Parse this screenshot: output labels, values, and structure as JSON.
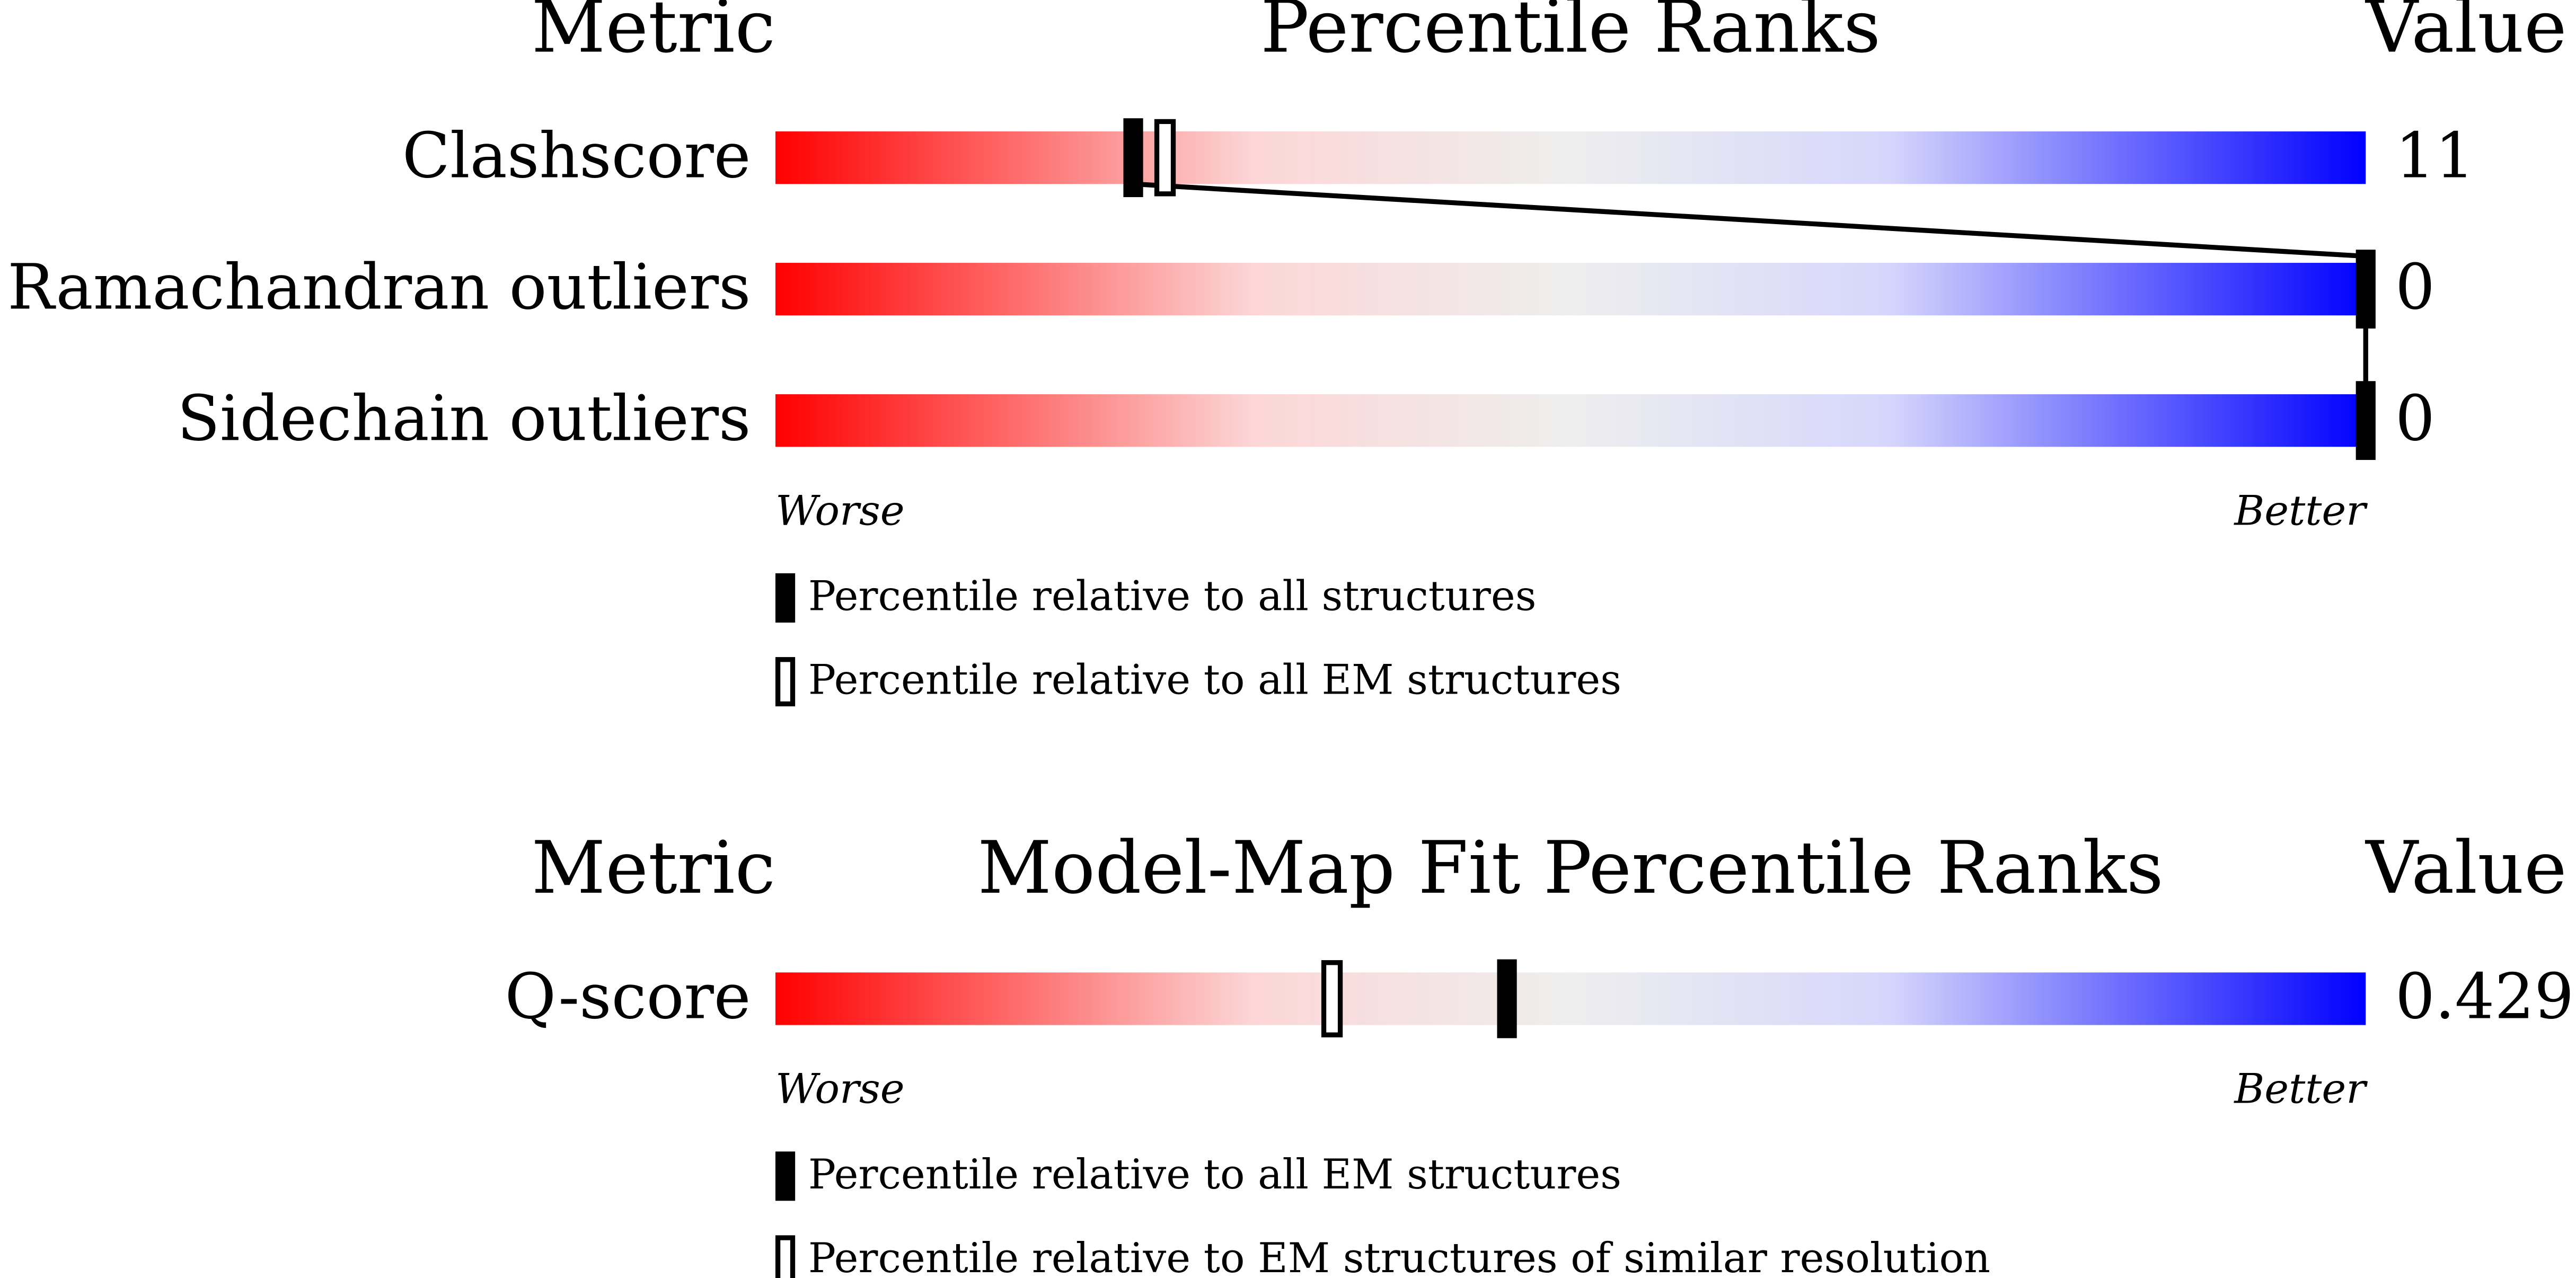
{
  "chart_data": [
    {
      "type": "percentile-slider",
      "metric_header": "Metric",
      "title": "Percentile Ranks",
      "value_header": "Value",
      "xlim": [
        0,
        100
      ],
      "worse_label": "Worse",
      "better_label": "Better",
      "legend": [
        "Percentile relative to all structures",
        "Percentile relative to all EM structures"
      ],
      "metrics": [
        {
          "name": "Clashscore",
          "value": 11,
          "percentiles": [
            22.5,
            24.5
          ]
        },
        {
          "name": "Ramachandran outliers",
          "value": 0,
          "percentiles": [
            100
          ]
        },
        {
          "name": "Sidechain outliers",
          "value": 0,
          "percentiles": [
            100
          ]
        }
      ]
    },
    {
      "type": "percentile-slider",
      "metric_header": "Metric",
      "title": "Model-Map Fit Percentile Ranks",
      "value_header": "Value",
      "xlim": [
        0,
        100
      ],
      "worse_label": "Worse",
      "better_label": "Better",
      "legend": [
        "Percentile relative to all EM structures",
        "Percentile relative to EM structures of similar resolution"
      ],
      "metrics": [
        {
          "name": "Q-score",
          "value": 0.429,
          "percentiles": [
            46,
            35
          ]
        }
      ]
    }
  ]
}
